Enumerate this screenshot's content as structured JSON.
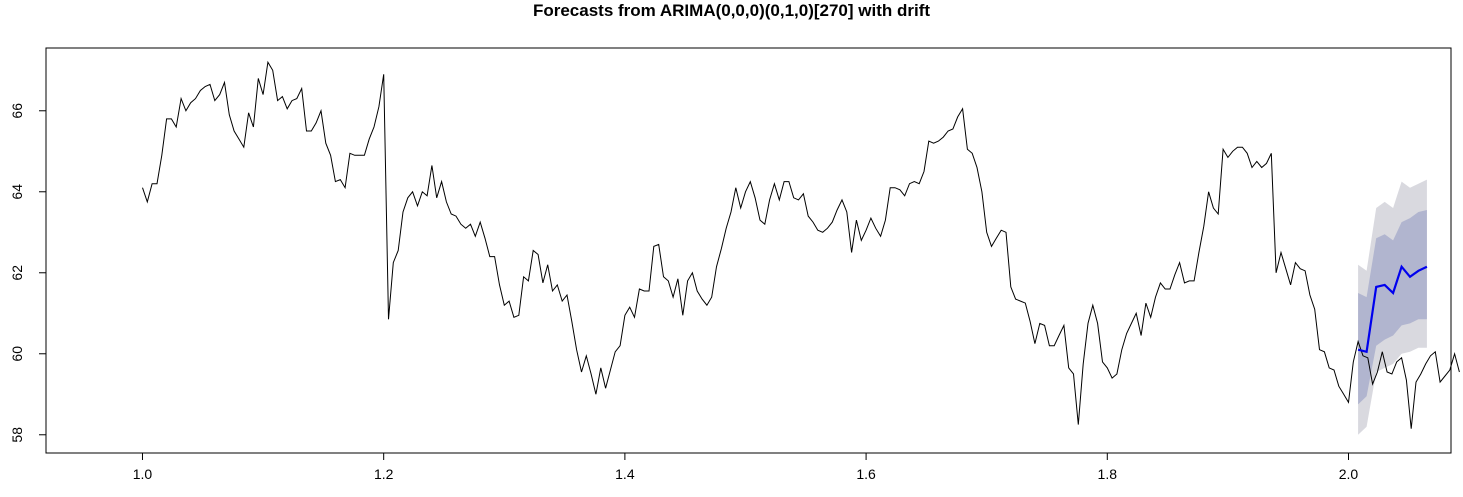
{
  "chart_data": {
    "type": "line",
    "title": "Forecasts from ARIMA(0,0,0)(0,1,0)[270] with drift",
    "xlabel": "",
    "ylabel": "",
    "xlim": [
      0.92,
      2.085
    ],
    "ylim": [
      57.55,
      67.55
    ],
    "x_ticks": [
      1.0,
      1.2,
      1.4,
      1.6,
      1.8,
      2.0
    ],
    "x_tick_labels": [
      "1.0",
      "1.2",
      "1.4",
      "1.6",
      "1.8",
      "2.0"
    ],
    "y_ticks": [
      58,
      60,
      62,
      64,
      66
    ],
    "y_tick_labels": [
      "58",
      "60",
      "62",
      "64",
      "66"
    ],
    "grid": false,
    "legend": "none",
    "colors": {
      "history": "#000000",
      "forecast": "#0000ee",
      "band80": "#b1b5cf",
      "band95": "#d9d9df"
    },
    "series": [
      {
        "points": [
          [
            1.0,
            64.1
          ],
          [
            1.004,
            63.75
          ],
          [
            1.008,
            64.2
          ],
          [
            1.012,
            64.2
          ],
          [
            1.016,
            64.9
          ],
          [
            1.02,
            65.8
          ],
          [
            1.024,
            65.8
          ],
          [
            1.028,
            65.6
          ],
          [
            1.032,
            66.3
          ],
          [
            1.036,
            66.0
          ],
          [
            1.04,
            66.2
          ],
          [
            1.044,
            66.3
          ],
          [
            1.048,
            66.5
          ],
          [
            1.052,
            66.6
          ],
          [
            1.056,
            66.65
          ],
          [
            1.06,
            66.25
          ],
          [
            1.064,
            66.4
          ],
          [
            1.068,
            66.7
          ],
          [
            1.072,
            65.9
          ],
          [
            1.076,
            65.5
          ],
          [
            1.08,
            65.3
          ],
          [
            1.084,
            65.1
          ],
          [
            1.088,
            65.95
          ],
          [
            1.092,
            65.6
          ],
          [
            1.096,
            66.8
          ],
          [
            1.1,
            66.4
          ],
          [
            1.104,
            67.2
          ],
          [
            1.108,
            67.0
          ],
          [
            1.112,
            66.25
          ],
          [
            1.116,
            66.35
          ],
          [
            1.12,
            66.05
          ],
          [
            1.124,
            66.25
          ],
          [
            1.128,
            66.3
          ],
          [
            1.132,
            66.55
          ],
          [
            1.136,
            65.5
          ],
          [
            1.14,
            65.5
          ],
          [
            1.144,
            65.7
          ],
          [
            1.148,
            66.0
          ],
          [
            1.152,
            65.2
          ],
          [
            1.156,
            64.9
          ],
          [
            1.16,
            64.25
          ],
          [
            1.164,
            64.3
          ],
          [
            1.168,
            64.1
          ],
          [
            1.172,
            64.95
          ],
          [
            1.176,
            64.9
          ],
          [
            1.18,
            64.9
          ],
          [
            1.184,
            64.9
          ],
          [
            1.188,
            65.3
          ],
          [
            1.192,
            65.6
          ],
          [
            1.196,
            66.1
          ],
          [
            1.2,
            66.9
          ],
          [
            1.204,
            60.85
          ],
          [
            1.208,
            62.25
          ],
          [
            1.212,
            62.55
          ],
          [
            1.216,
            63.5
          ],
          [
            1.22,
            63.85
          ],
          [
            1.224,
            64.0
          ],
          [
            1.228,
            63.65
          ],
          [
            1.232,
            64.0
          ],
          [
            1.236,
            63.9
          ],
          [
            1.24,
            64.65
          ],
          [
            1.244,
            63.85
          ],
          [
            1.248,
            64.25
          ],
          [
            1.252,
            63.75
          ],
          [
            1.256,
            63.45
          ],
          [
            1.26,
            63.4
          ],
          [
            1.264,
            63.2
          ],
          [
            1.268,
            63.1
          ],
          [
            1.272,
            63.2
          ],
          [
            1.276,
            62.9
          ],
          [
            1.28,
            63.25
          ],
          [
            1.284,
            62.85
          ],
          [
            1.288,
            62.4
          ],
          [
            1.292,
            62.4
          ],
          [
            1.296,
            61.7
          ],
          [
            1.3,
            61.2
          ],
          [
            1.304,
            61.3
          ],
          [
            1.308,
            60.9
          ],
          [
            1.312,
            60.95
          ],
          [
            1.316,
            61.9
          ],
          [
            1.32,
            61.8
          ],
          [
            1.324,
            62.55
          ],
          [
            1.328,
            62.45
          ],
          [
            1.332,
            61.75
          ],
          [
            1.336,
            62.2
          ],
          [
            1.34,
            61.55
          ],
          [
            1.344,
            61.7
          ],
          [
            1.348,
            61.3
          ],
          [
            1.352,
            61.45
          ],
          [
            1.356,
            60.8
          ],
          [
            1.36,
            60.1
          ],
          [
            1.364,
            59.55
          ],
          [
            1.368,
            59.95
          ],
          [
            1.372,
            59.5
          ],
          [
            1.376,
            59.0
          ],
          [
            1.38,
            59.65
          ],
          [
            1.384,
            59.15
          ],
          [
            1.388,
            59.6
          ],
          [
            1.392,
            60.05
          ],
          [
            1.396,
            60.2
          ],
          [
            1.4,
            60.95
          ],
          [
            1.404,
            61.15
          ],
          [
            1.408,
            60.9
          ],
          [
            1.412,
            61.6
          ],
          [
            1.416,
            61.55
          ],
          [
            1.42,
            61.55
          ],
          [
            1.424,
            62.65
          ],
          [
            1.428,
            62.7
          ],
          [
            1.432,
            61.9
          ],
          [
            1.436,
            61.8
          ],
          [
            1.44,
            61.4
          ],
          [
            1.444,
            61.85
          ],
          [
            1.448,
            60.95
          ],
          [
            1.452,
            61.8
          ],
          [
            1.456,
            62.0
          ],
          [
            1.46,
            61.55
          ],
          [
            1.464,
            61.35
          ],
          [
            1.468,
            61.2
          ],
          [
            1.472,
            61.4
          ],
          [
            1.476,
            62.15
          ],
          [
            1.48,
            62.6
          ],
          [
            1.484,
            63.1
          ],
          [
            1.488,
            63.5
          ],
          [
            1.492,
            64.1
          ],
          [
            1.496,
            63.6
          ],
          [
            1.5,
            64.0
          ],
          [
            1.504,
            64.25
          ],
          [
            1.508,
            63.85
          ],
          [
            1.512,
            63.3
          ],
          [
            1.516,
            63.2
          ],
          [
            1.52,
            63.8
          ],
          [
            1.524,
            64.2
          ],
          [
            1.528,
            63.8
          ],
          [
            1.532,
            64.25
          ],
          [
            1.536,
            64.25
          ],
          [
            1.54,
            63.85
          ],
          [
            1.544,
            63.8
          ],
          [
            1.548,
            63.95
          ],
          [
            1.552,
            63.4
          ],
          [
            1.556,
            63.25
          ],
          [
            1.56,
            63.05
          ],
          [
            1.564,
            63.0
          ],
          [
            1.568,
            63.1
          ],
          [
            1.572,
            63.25
          ],
          [
            1.576,
            63.55
          ],
          [
            1.58,
            63.8
          ],
          [
            1.584,
            63.5
          ],
          [
            1.588,
            62.5
          ],
          [
            1.592,
            63.3
          ],
          [
            1.596,
            62.8
          ],
          [
            1.6,
            63.05
          ],
          [
            1.604,
            63.35
          ],
          [
            1.608,
            63.1
          ],
          [
            1.612,
            62.9
          ],
          [
            1.616,
            63.3
          ],
          [
            1.62,
            64.1
          ],
          [
            1.624,
            64.1
          ],
          [
            1.628,
            64.05
          ],
          [
            1.632,
            63.9
          ],
          [
            1.636,
            64.2
          ],
          [
            1.64,
            64.25
          ],
          [
            1.644,
            64.2
          ],
          [
            1.648,
            64.5
          ],
          [
            1.652,
            65.25
          ],
          [
            1.656,
            65.2
          ],
          [
            1.66,
            65.25
          ],
          [
            1.664,
            65.35
          ],
          [
            1.668,
            65.5
          ],
          [
            1.672,
            65.55
          ],
          [
            1.676,
            65.85
          ],
          [
            1.68,
            66.05
          ],
          [
            1.684,
            65.05
          ],
          [
            1.688,
            64.95
          ],
          [
            1.692,
            64.6
          ],
          [
            1.696,
            64.0
          ],
          [
            1.7,
            63.0
          ],
          [
            1.704,
            62.65
          ],
          [
            1.708,
            62.85
          ],
          [
            1.712,
            63.05
          ],
          [
            1.716,
            63.0
          ],
          [
            1.72,
            61.65
          ],
          [
            1.724,
            61.35
          ],
          [
            1.728,
            61.3
          ],
          [
            1.732,
            61.25
          ],
          [
            1.736,
            60.8
          ],
          [
            1.74,
            60.25
          ],
          [
            1.744,
            60.75
          ],
          [
            1.748,
            60.7
          ],
          [
            1.752,
            60.2
          ],
          [
            1.756,
            60.2
          ],
          [
            1.76,
            60.45
          ],
          [
            1.764,
            60.7
          ],
          [
            1.768,
            59.65
          ],
          [
            1.772,
            59.5
          ],
          [
            1.776,
            58.25
          ],
          [
            1.78,
            59.75
          ],
          [
            1.784,
            60.75
          ],
          [
            1.788,
            61.2
          ],
          [
            1.792,
            60.75
          ],
          [
            1.796,
            59.8
          ],
          [
            1.8,
            59.65
          ],
          [
            1.804,
            59.4
          ],
          [
            1.808,
            59.5
          ],
          [
            1.812,
            60.1
          ],
          [
            1.816,
            60.5
          ],
          [
            1.82,
            60.75
          ],
          [
            1.824,
            61.0
          ],
          [
            1.828,
            60.45
          ],
          [
            1.832,
            61.25
          ],
          [
            1.836,
            60.9
          ],
          [
            1.84,
            61.4
          ],
          [
            1.844,
            61.75
          ],
          [
            1.848,
            61.6
          ],
          [
            1.852,
            61.6
          ],
          [
            1.856,
            61.95
          ],
          [
            1.86,
            62.25
          ],
          [
            1.864,
            61.75
          ],
          [
            1.868,
            61.8
          ],
          [
            1.872,
            61.8
          ],
          [
            1.876,
            62.5
          ],
          [
            1.88,
            63.15
          ],
          [
            1.884,
            64.0
          ],
          [
            1.888,
            63.6
          ],
          [
            1.892,
            63.45
          ],
          [
            1.896,
            65.05
          ],
          [
            1.9,
            64.85
          ],
          [
            1.904,
            65.0
          ],
          [
            1.908,
            65.1
          ],
          [
            1.912,
            65.1
          ],
          [
            1.916,
            64.95
          ],
          [
            1.92,
            64.6
          ],
          [
            1.924,
            64.75
          ],
          [
            1.928,
            64.6
          ],
          [
            1.932,
            64.7
          ],
          [
            1.936,
            64.95
          ],
          [
            1.94,
            62.0
          ],
          [
            1.944,
            62.5
          ],
          [
            1.948,
            62.1
          ],
          [
            1.952,
            61.7
          ],
          [
            1.956,
            62.25
          ],
          [
            1.96,
            62.1
          ],
          [
            1.964,
            62.05
          ],
          [
            1.968,
            61.45
          ],
          [
            1.972,
            61.1
          ],
          [
            1.976,
            60.1
          ],
          [
            1.98,
            60.05
          ],
          [
            1.984,
            59.65
          ],
          [
            1.988,
            59.6
          ],
          [
            1.992,
            59.2
          ],
          [
            1.996,
            59.0
          ],
          [
            2.0,
            58.8
          ],
          [
            2.004,
            59.8
          ],
          [
            2.008,
            60.3
          ],
          [
            2.012,
            59.95
          ],
          [
            2.016,
            59.9
          ],
          [
            2.02,
            59.25
          ],
          [
            2.024,
            59.55
          ],
          [
            2.028,
            60.05
          ],
          [
            2.032,
            59.55
          ],
          [
            2.036,
            59.5
          ],
          [
            2.04,
            59.8
          ],
          [
            2.044,
            59.9
          ],
          [
            2.048,
            59.35
          ],
          [
            2.052,
            58.15
          ],
          [
            2.056,
            59.3
          ],
          [
            2.06,
            59.5
          ],
          [
            2.064,
            59.75
          ],
          [
            2.068,
            59.95
          ],
          [
            2.072,
            60.05
          ],
          [
            2.076,
            59.3
          ],
          [
            2.08,
            59.45
          ],
          [
            2.084,
            59.6
          ],
          [
            2.088,
            60.0
          ],
          [
            2.092,
            59.55
          ]
        ]
      }
    ],
    "forecast": {
      "x": [
        2.008,
        2.015,
        2.023,
        2.03,
        2.037,
        2.044,
        2.051,
        2.058,
        2.065
      ],
      "mean": [
        60.1,
        60.05,
        61.65,
        61.7,
        61.5,
        62.15,
        61.9,
        62.05,
        62.15
      ],
      "lo80": [
        58.75,
        58.95,
        60.2,
        60.35,
        60.45,
        60.7,
        60.75,
        60.85,
        60.85
      ],
      "hi80": [
        61.5,
        61.4,
        62.85,
        62.95,
        62.8,
        63.25,
        63.35,
        63.5,
        63.55
      ],
      "lo95": [
        58.0,
        58.2,
        59.55,
        59.65,
        59.75,
        60.0,
        60.05,
        60.15,
        60.15
      ],
      "hi95": [
        62.2,
        62.05,
        63.6,
        63.75,
        63.6,
        64.25,
        64.1,
        64.2,
        64.3
      ]
    }
  }
}
